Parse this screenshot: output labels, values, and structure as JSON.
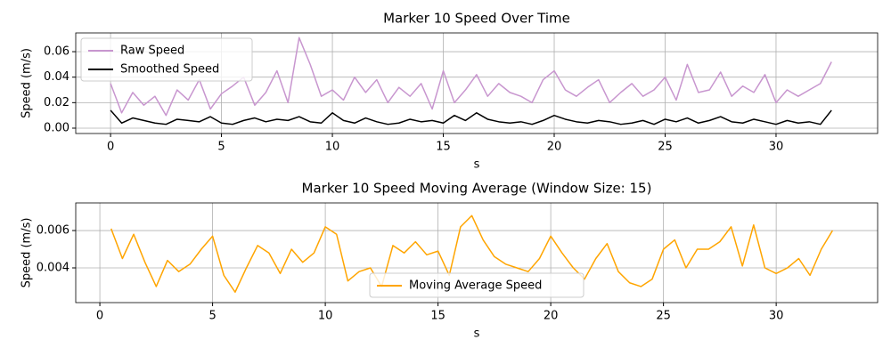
{
  "chart_data": [
    {
      "type": "line",
      "title": "Marker 10 Speed Over Time",
      "xlabel": "s",
      "ylabel": "Speed (m/s)",
      "x": [
        0,
        0.5,
        1,
        1.5,
        2,
        2.5,
        3,
        3.5,
        4,
        4.5,
        5,
        5.5,
        6,
        6.5,
        7,
        7.5,
        8,
        8.5,
        9,
        9.5,
        10,
        10.5,
        11,
        11.5,
        12,
        12.5,
        13,
        13.5,
        14,
        14.5,
        15,
        15.5,
        16,
        16.5,
        17,
        17.5,
        18,
        18.5,
        19,
        19.5,
        20,
        20.5,
        21,
        21.5,
        22,
        22.5,
        23,
        23.5,
        24,
        24.5,
        25,
        25.5,
        26,
        26.5,
        27,
        27.5,
        28,
        28.5,
        29,
        29.5,
        30,
        30.5,
        31,
        31.5,
        32,
        32.5
      ],
      "series": [
        {
          "name": "Raw Speed",
          "color": "#c896cf",
          "values": [
            0.035,
            0.012,
            0.028,
            0.018,
            0.025,
            0.01,
            0.03,
            0.022,
            0.038,
            0.015,
            0.027,
            0.033,
            0.04,
            0.018,
            0.028,
            0.045,
            0.02,
            0.071,
            0.05,
            0.025,
            0.03,
            0.022,
            0.04,
            0.028,
            0.038,
            0.02,
            0.032,
            0.025,
            0.035,
            0.015,
            0.045,
            0.02,
            0.03,
            0.042,
            0.025,
            0.035,
            0.028,
            0.025,
            0.02,
            0.038,
            0.045,
            0.03,
            0.025,
            0.032,
            0.038,
            0.02,
            0.028,
            0.035,
            0.025,
            0.03,
            0.04,
            0.022,
            0.05,
            0.028,
            0.03,
            0.044,
            0.025,
            0.033,
            0.028,
            0.042,
            0.02,
            0.03,
            0.025,
            0.03,
            0.035,
            0.052
          ]
        },
        {
          "name": "Smoothed Speed",
          "color": "#000000",
          "values": [
            0.014,
            0.004,
            0.008,
            0.006,
            0.004,
            0.003,
            0.007,
            0.006,
            0.005,
            0.009,
            0.004,
            0.003,
            0.006,
            0.008,
            0.005,
            0.007,
            0.006,
            0.009,
            0.005,
            0.004,
            0.012,
            0.006,
            0.004,
            0.008,
            0.005,
            0.003,
            0.004,
            0.007,
            0.005,
            0.006,
            0.004,
            0.01,
            0.006,
            0.012,
            0.007,
            0.005,
            0.004,
            0.005,
            0.003,
            0.006,
            0.01,
            0.007,
            0.005,
            0.004,
            0.006,
            0.005,
            0.003,
            0.004,
            0.006,
            0.003,
            0.007,
            0.005,
            0.008,
            0.004,
            0.006,
            0.009,
            0.005,
            0.004,
            0.007,
            0.005,
            0.003,
            0.006,
            0.004,
            0.005,
            0.003,
            0.014
          ]
        }
      ],
      "xlim": [
        -1.57,
        34.58
      ],
      "xticks": [
        0,
        5,
        10,
        15,
        20,
        25,
        30
      ],
      "ylim": [
        -0.0042,
        0.0747
      ],
      "yticks": [
        {
          "value": 0,
          "label": "0.00"
        },
        {
          "value": 0.02,
          "label": "0.02"
        },
        {
          "value": 0.04,
          "label": "0.04"
        },
        {
          "value": 0.06,
          "label": "0.06"
        }
      ],
      "grid": true,
      "legend": "upper left"
    },
    {
      "type": "line",
      "title": "Marker 10 Speed Moving Average (Window Size: 15)",
      "xlabel": "s",
      "ylabel": "Speed (m/s)",
      "x": [
        0.5,
        1,
        1.5,
        2,
        2.5,
        3,
        3.5,
        4,
        4.5,
        5,
        5.5,
        6,
        6.5,
        7,
        7.5,
        8,
        8.5,
        9,
        9.5,
        10,
        10.5,
        11,
        11.5,
        12,
        12.5,
        13,
        13.5,
        14,
        14.5,
        15,
        15.5,
        16,
        16.5,
        17,
        17.5,
        18,
        18.5,
        19,
        19.5,
        20,
        20.5,
        21,
        21.5,
        22,
        22.5,
        23,
        23.5,
        24,
        24.5,
        25,
        25.5,
        26,
        26.5,
        27,
        27.5,
        28,
        28.5,
        29,
        29.5,
        30,
        30.5,
        31,
        31.5,
        32,
        32.5
      ],
      "series": [
        {
          "name": "Moving Average Speed",
          "color": "#ffa500",
          "values": [
            0.0061,
            0.0045,
            0.0058,
            0.0043,
            0.003,
            0.0044,
            0.0038,
            0.0042,
            0.005,
            0.0057,
            0.0036,
            0.0027,
            0.004,
            0.0052,
            0.0048,
            0.0037,
            0.005,
            0.0043,
            0.0048,
            0.0062,
            0.0058,
            0.0033,
            0.0038,
            0.004,
            0.003,
            0.0052,
            0.0048,
            0.0054,
            0.0047,
            0.0049,
            0.0036,
            0.0062,
            0.0068,
            0.0055,
            0.0046,
            0.0042,
            0.004,
            0.0038,
            0.0045,
            0.0057,
            0.0048,
            0.004,
            0.0034,
            0.0045,
            0.0053,
            0.0038,
            0.0032,
            0.003,
            0.0034,
            0.005,
            0.0055,
            0.004,
            0.005,
            0.005,
            0.0054,
            0.0062,
            0.0041,
            0.0063,
            0.004,
            0.0037,
            0.004,
            0.0045,
            0.0036,
            0.005,
            0.006
          ]
        }
      ],
      "xlim": [
        -1.07,
        34.5
      ],
      "xticks": [
        0,
        5,
        10,
        15,
        20,
        25,
        30
      ],
      "ylim": [
        0.00214,
        0.00748
      ],
      "yticks": [
        0.004,
        0.006
      ],
      "grid": true,
      "legend": "lower center"
    }
  ]
}
